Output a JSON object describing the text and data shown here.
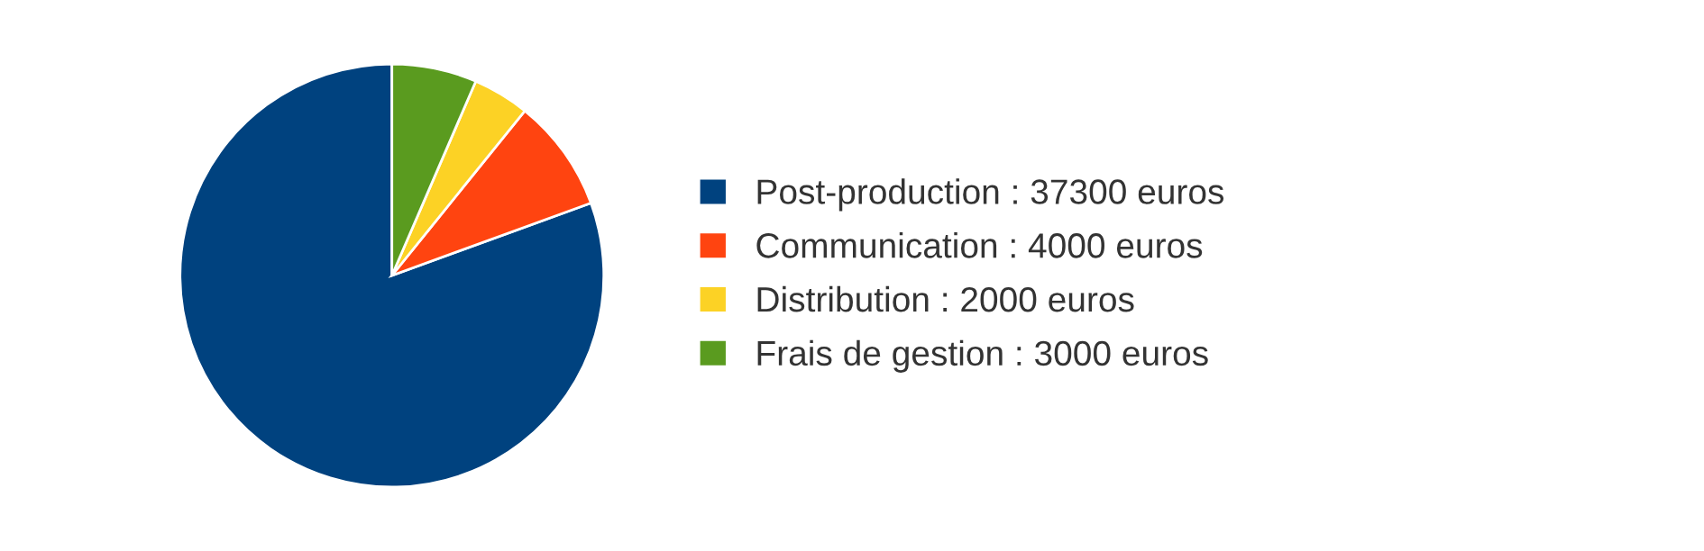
{
  "chart_data": {
    "type": "pie",
    "categories": [
      "Post-production : 37300 euros",
      "Communication : 4000 euros",
      "Distribution : 2000 euros",
      "Frais de gestion : 3000 euros"
    ],
    "values": [
      37300,
      4000,
      2000,
      3000
    ],
    "colors": [
      "#00427f",
      "#ff4410",
      "#fcd225",
      "#5a9b1f"
    ],
    "legend": "right"
  }
}
